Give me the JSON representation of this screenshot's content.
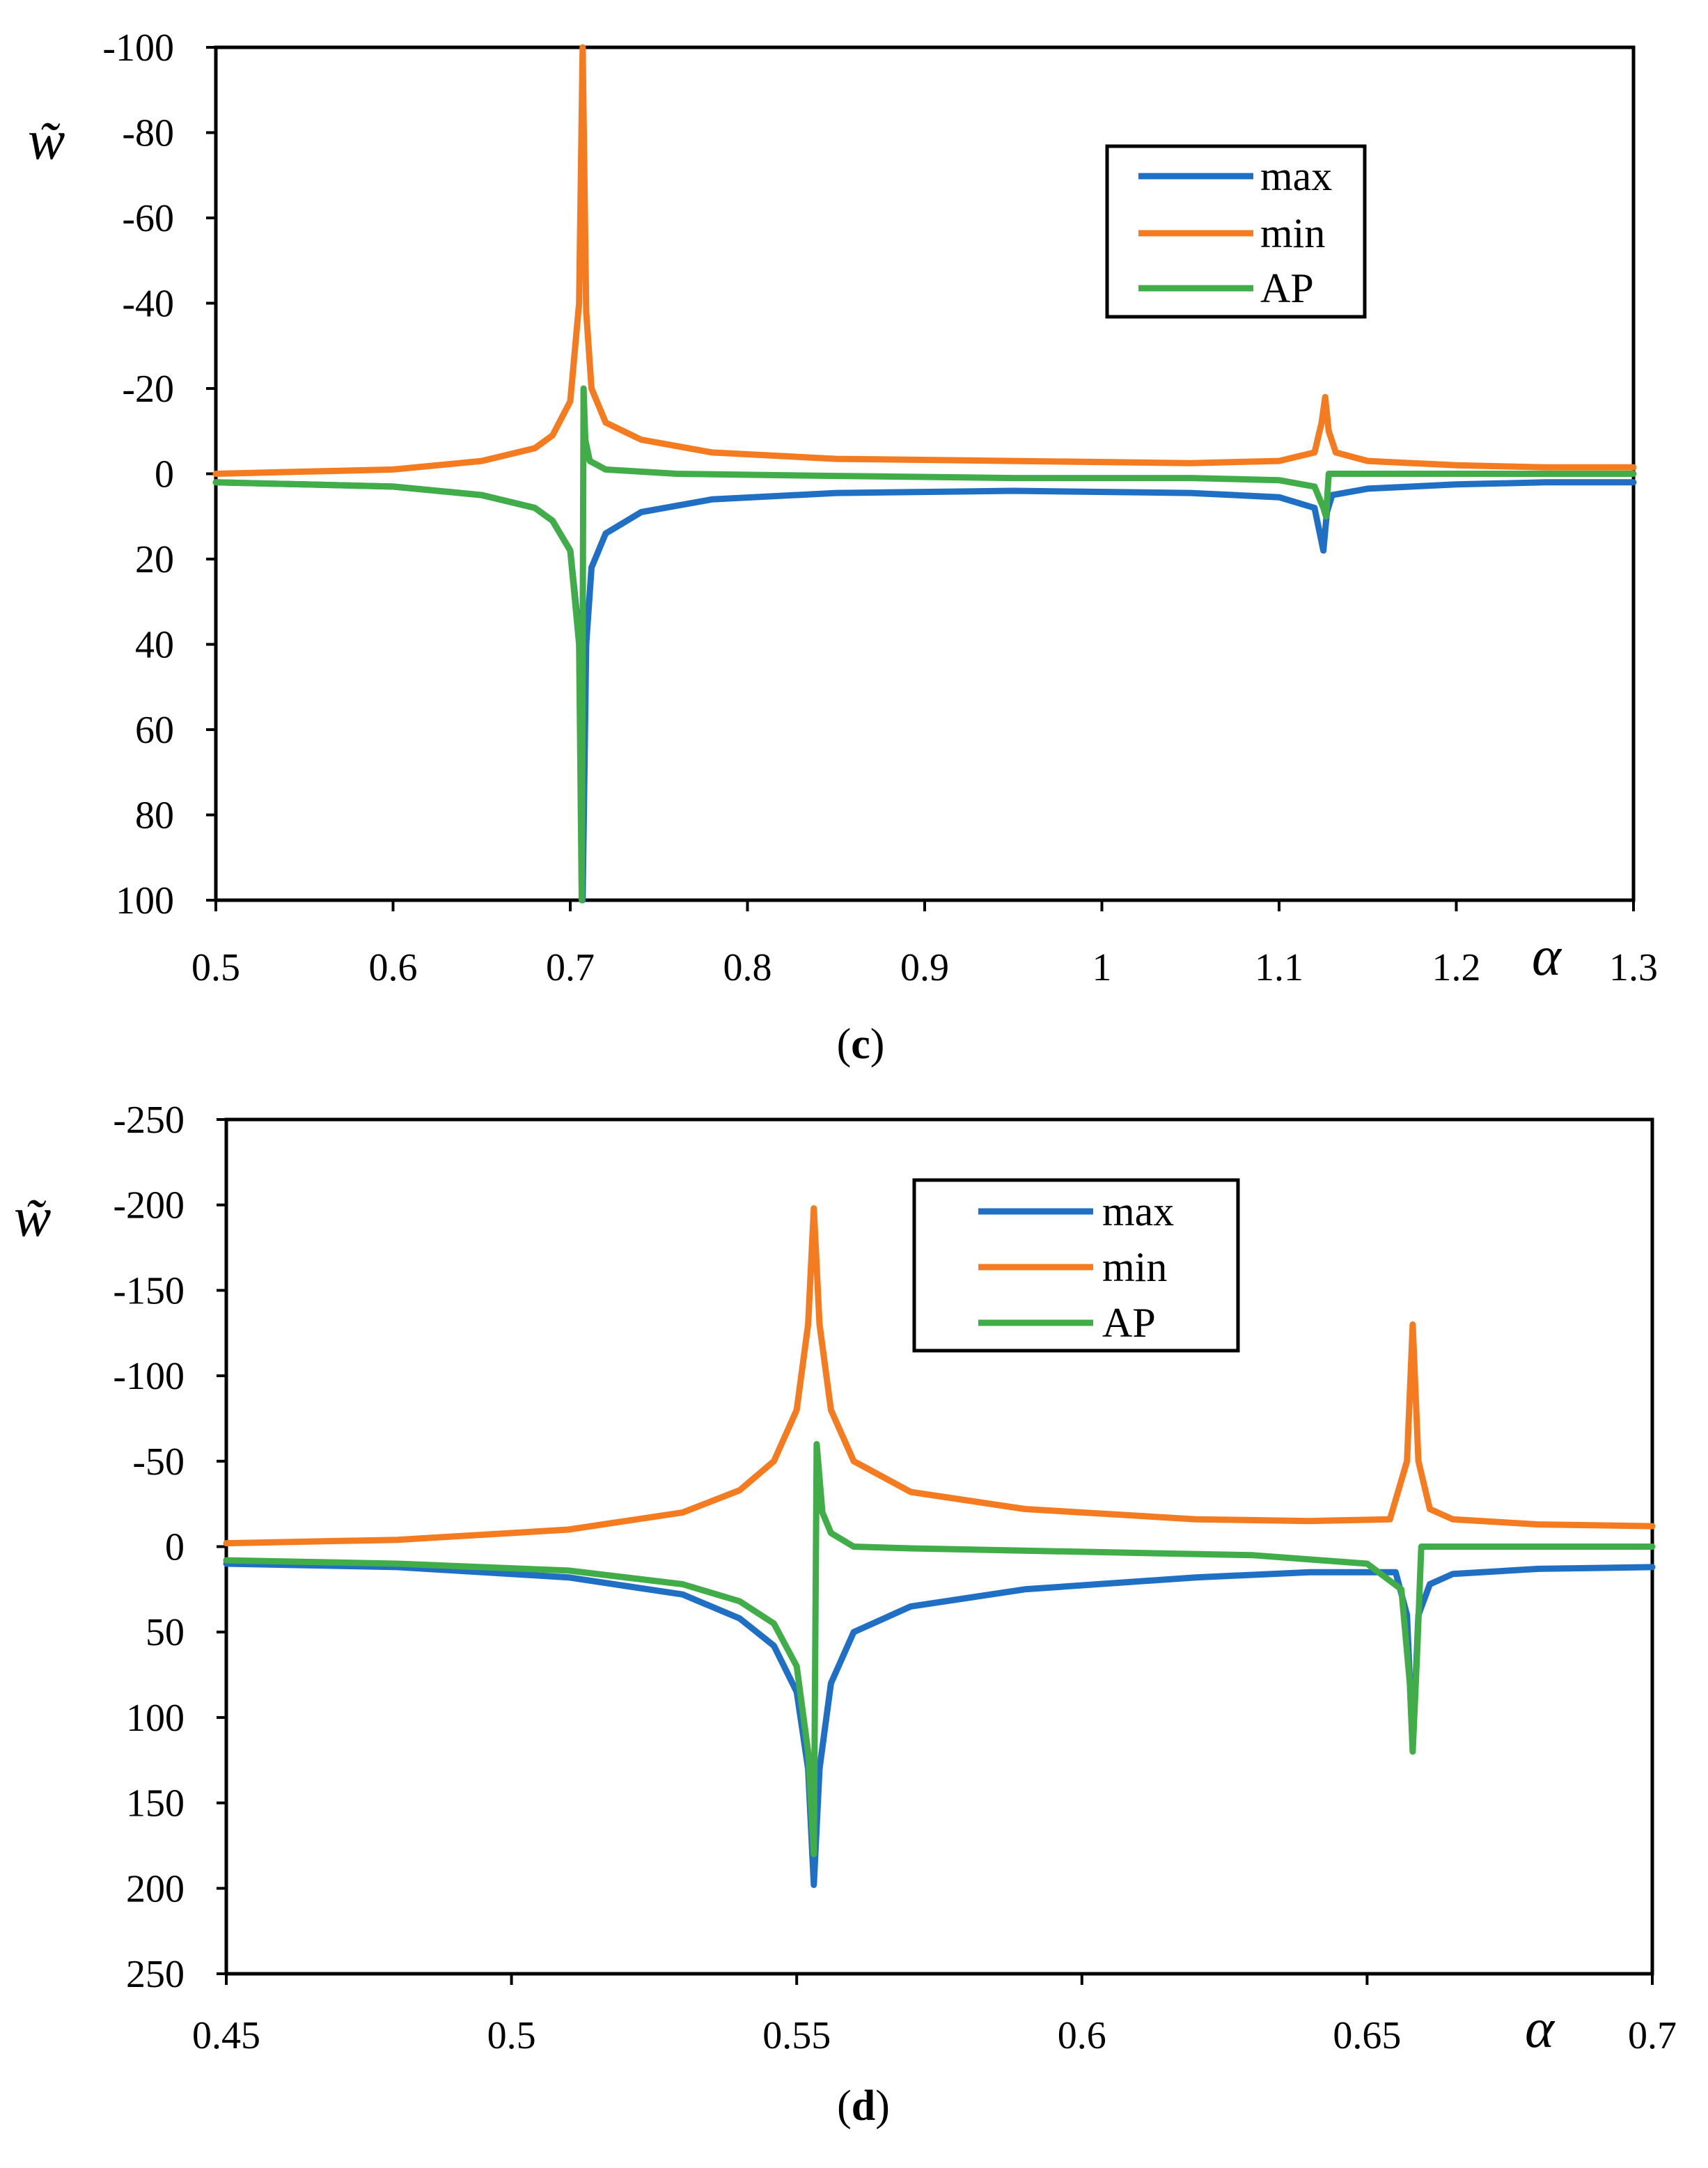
{
  "chart_data": [
    {
      "id": "c",
      "type": "line",
      "caption_open": "(",
      "caption_letter": "c",
      "caption_close": ")",
      "xlabel": "α",
      "ylabel": "w̃",
      "xlim": [
        0.5,
        1.3
      ],
      "ylim": [
        -100,
        100
      ],
      "y_inverted": true,
      "x_ticks": [
        "0.5",
        "0.6",
        "0.7",
        "0.8",
        "0.9",
        "1",
        "1.1",
        "1.2",
        "1.3"
      ],
      "x_tick_values": [
        0.5,
        0.6,
        0.7,
        0.8,
        0.9,
        1.0,
        1.1,
        1.2,
        1.3
      ],
      "y_ticks": [
        "-100",
        "-80",
        "-60",
        "-40",
        "-20",
        "0",
        "20",
        "40",
        "60",
        "80",
        "100"
      ],
      "y_tick_values": [
        -100,
        -80,
        -60,
        -40,
        -20,
        0,
        20,
        40,
        60,
        80,
        100
      ],
      "legend_position": "top-right",
      "series": [
        {
          "name": "max",
          "color": "#1f6fc4",
          "x": [
            0.5,
            0.55,
            0.6,
            0.65,
            0.68,
            0.69,
            0.7,
            0.705,
            0.707,
            0.709,
            0.712,
            0.72,
            0.74,
            0.78,
            0.85,
            0.95,
            1.05,
            1.1,
            1.12,
            1.125,
            1.127,
            1.13,
            1.15,
            1.2,
            1.25,
            1.3
          ],
          "y": [
            2,
            2.5,
            3,
            5,
            8,
            11,
            18,
            38,
            100,
            40,
            22,
            14,
            9,
            6,
            4.5,
            4,
            4.5,
            5.5,
            8,
            18,
            9,
            5,
            3.5,
            2.5,
            2,
            2
          ]
        },
        {
          "name": "min",
          "color": "#f47b20",
          "x": [
            0.5,
            0.55,
            0.6,
            0.65,
            0.68,
            0.69,
            0.7,
            0.705,
            0.707,
            0.709,
            0.712,
            0.72,
            0.74,
            0.78,
            0.85,
            0.95,
            1.05,
            1.1,
            1.12,
            1.124,
            1.126,
            1.128,
            1.132,
            1.15,
            1.2,
            1.25,
            1.3
          ],
          "y": [
            0,
            -0.5,
            -1,
            -3,
            -6,
            -9,
            -17,
            -40,
            -100,
            -38,
            -20,
            -12,
            -8,
            -5,
            -3.5,
            -3,
            -2.5,
            -3,
            -5,
            -12,
            -18,
            -10,
            -5,
            -3,
            -2,
            -1.5,
            -1.5
          ]
        },
        {
          "name": "AP",
          "color": "#41ad49",
          "x": [
            0.5,
            0.55,
            0.6,
            0.65,
            0.68,
            0.69,
            0.7,
            0.705,
            0.7065,
            0.7075,
            0.7085,
            0.711,
            0.72,
            0.76,
            0.85,
            0.95,
            1.05,
            1.1,
            1.12,
            1.125,
            1.1265,
            1.128,
            1.135,
            1.2,
            1.3
          ],
          "y": [
            2,
            2.5,
            3,
            5,
            8,
            11,
            18,
            40,
            100,
            -20,
            -8,
            -3,
            -1,
            0,
            0.5,
            1,
            1,
            1.5,
            3,
            8,
            10,
            0,
            0,
            0,
            0
          ]
        }
      ]
    },
    {
      "id": "d",
      "type": "line",
      "caption_open": "(",
      "caption_letter": "d",
      "caption_close": ")",
      "xlabel": "α",
      "ylabel": "w̃",
      "xlim": [
        0.45,
        0.7
      ],
      "ylim": [
        -250,
        250
      ],
      "y_inverted": true,
      "x_ticks": [
        "0.45",
        "0.5",
        "0.55",
        "0.6",
        "0.65",
        "0.7"
      ],
      "x_tick_values": [
        0.45,
        0.5,
        0.55,
        0.6,
        0.65,
        0.7
      ],
      "y_ticks": [
        "-250",
        "-200",
        "-150",
        "-100",
        "-50",
        "0",
        "50",
        "100",
        "150",
        "200",
        "250"
      ],
      "y_tick_values": [
        -250,
        -200,
        -150,
        -100,
        -50,
        0,
        50,
        100,
        150,
        200,
        250
      ],
      "legend_position": "top-center",
      "series": [
        {
          "name": "max",
          "color": "#1f6fc4",
          "x": [
            0.45,
            0.48,
            0.51,
            0.53,
            0.54,
            0.546,
            0.55,
            0.552,
            0.553,
            0.554,
            0.556,
            0.56,
            0.57,
            0.59,
            0.62,
            0.64,
            0.655,
            0.657,
            0.658,
            0.659,
            0.661,
            0.665,
            0.68,
            0.7
          ],
          "y": [
            10,
            12,
            18,
            28,
            42,
            58,
            85,
            130,
            198,
            130,
            80,
            50,
            35,
            25,
            18,
            15,
            15,
            40,
            118,
            40,
            22,
            16,
            13,
            12
          ]
        },
        {
          "name": "min",
          "color": "#f47b20",
          "x": [
            0.45,
            0.48,
            0.51,
            0.53,
            0.54,
            0.546,
            0.55,
            0.552,
            0.553,
            0.554,
            0.556,
            0.56,
            0.57,
            0.59,
            0.62,
            0.64,
            0.654,
            0.657,
            0.658,
            0.659,
            0.661,
            0.665,
            0.68,
            0.7
          ],
          "y": [
            -2,
            -4,
            -10,
            -20,
            -33,
            -50,
            -80,
            -130,
            -198,
            -130,
            -80,
            -50,
            -32,
            -22,
            -16,
            -15,
            -16,
            -50,
            -130,
            -50,
            -22,
            -16,
            -13,
            -12
          ]
        },
        {
          "name": "AP",
          "color": "#41ad49",
          "x": [
            0.45,
            0.48,
            0.51,
            0.53,
            0.54,
            0.546,
            0.55,
            0.552,
            0.553,
            0.5535,
            0.554,
            0.5545,
            0.556,
            0.56,
            0.57,
            0.6,
            0.63,
            0.65,
            0.656,
            0.6575,
            0.658,
            0.6588,
            0.6595,
            0.66,
            0.68,
            0.7
          ],
          "y": [
            8,
            10,
            14,
            22,
            32,
            45,
            70,
            120,
            180,
            -60,
            -40,
            -20,
            -8,
            0,
            1,
            3,
            5,
            10,
            25,
            80,
            120,
            60,
            0,
            0,
            0,
            0
          ]
        }
      ]
    }
  ]
}
